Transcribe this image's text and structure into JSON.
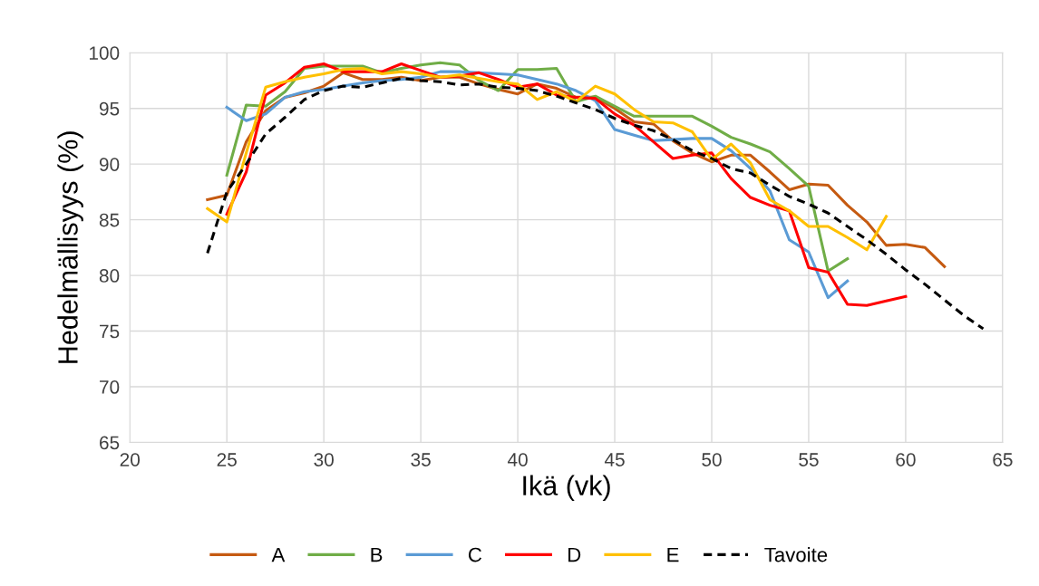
{
  "chart_data": {
    "type": "line",
    "xlabel": "Ikä (vk)",
    "ylabel": "Hedelmällisyys (%)",
    "xlim": [
      20,
      65
    ],
    "xticks": [
      20,
      25,
      30,
      35,
      40,
      45,
      50,
      55,
      60,
      65
    ],
    "ylim": [
      65,
      100
    ],
    "yticks": [
      65,
      70,
      75,
      80,
      85,
      90,
      95,
      100
    ],
    "grid": true,
    "legend": "bottom",
    "marker": "none",
    "series": [
      {
        "name": "A",
        "color": "#c55a11",
        "x": [
          24,
          25,
          26,
          27,
          28,
          29,
          30,
          31,
          32,
          33,
          34,
          35,
          36,
          37,
          38,
          39,
          40,
          41,
          42,
          43,
          44,
          45,
          46,
          47,
          48,
          49,
          50,
          51,
          52,
          53,
          54,
          55,
          56,
          57,
          58,
          59,
          60,
          61,
          62
        ],
        "values": [
          86.8,
          87.2,
          92,
          94.8,
          96,
          96.4,
          97,
          98.2,
          97.6,
          97.6,
          97.8,
          97.5,
          97.8,
          97.8,
          97.2,
          96.7,
          96.3,
          97.2,
          96.8,
          96.0,
          96.0,
          95,
          93.8,
          93.6,
          92.1,
          91,
          90.2,
          90.8,
          90.8,
          89.3,
          87.7,
          88.2,
          88.1,
          86.3,
          84.8,
          82.7,
          82.8,
          82.5,
          80.8
        ]
      },
      {
        "name": "B",
        "color": "#70ad47",
        "x": [
          25,
          26,
          27,
          28,
          29,
          30,
          31,
          32,
          33,
          34,
          35,
          36,
          37,
          38,
          39,
          40,
          41,
          42,
          43,
          44,
          45,
          46,
          47,
          48,
          49,
          50,
          51,
          52,
          53,
          54,
          55,
          56,
          57
        ],
        "values": [
          89,
          95.3,
          95.2,
          96.5,
          98.6,
          98.8,
          98.8,
          98.8,
          98.2,
          98.6,
          98.9,
          99.1,
          98.9,
          97.5,
          96.6,
          98.5,
          98.5,
          98.6,
          95.6,
          96.1,
          95.2,
          94.3,
          94.3,
          94.3,
          94.3,
          93.4,
          92.4,
          91.8,
          91.1,
          89.6,
          88,
          80.4,
          81.5
        ]
      },
      {
        "name": "C",
        "color": "#5b9bd5",
        "x": [
          25,
          26,
          27,
          28,
          29,
          30,
          31,
          32,
          33,
          34,
          35,
          36,
          37,
          38,
          39,
          40,
          41,
          42,
          43,
          44,
          45,
          46,
          47,
          48,
          49,
          50,
          51,
          52,
          53,
          54,
          55,
          56,
          57
        ],
        "values": [
          95.1,
          93.9,
          94.5,
          96,
          96.5,
          96.7,
          97,
          97.3,
          97.5,
          97.6,
          97.8,
          98.3,
          98.3,
          98.2,
          98.1,
          98.0,
          97.6,
          97.2,
          96.6,
          95.7,
          93.1,
          92.6,
          92.1,
          92.2,
          92.3,
          92.3,
          91.2,
          89.6,
          87.6,
          83.2,
          82.1,
          78,
          79.5
        ]
      },
      {
        "name": "D",
        "color": "#ff0000",
        "x": [
          25,
          26,
          27,
          28,
          29,
          30,
          31,
          32,
          33,
          34,
          35,
          36,
          37,
          38,
          39,
          40,
          41,
          42,
          43,
          44,
          45,
          46,
          47,
          48,
          49,
          50,
          51,
          52,
          53,
          54,
          55,
          56,
          57,
          58,
          59,
          60
        ],
        "values": [
          85.5,
          89.3,
          96.2,
          97.3,
          98.7,
          99.0,
          98.3,
          98.3,
          98.3,
          99,
          98.4,
          97.8,
          97.9,
          98.2,
          97.6,
          96.9,
          97.2,
          96.2,
          96.0,
          95.9,
          94.5,
          93.5,
          92.0,
          90.5,
          90.8,
          91,
          88.7,
          87,
          86.3,
          85.8,
          80.7,
          80.3,
          77.4,
          77.3,
          77.7,
          78.1
        ]
      },
      {
        "name": "E",
        "color": "#ffc000",
        "x": [
          24,
          25,
          26,
          27,
          28,
          29,
          30,
          31,
          32,
          33,
          34,
          35,
          36,
          37,
          38,
          39,
          40,
          41,
          42,
          43,
          44,
          45,
          46,
          47,
          48,
          49,
          50,
          51,
          52,
          53,
          54,
          55,
          56,
          57,
          58,
          59
        ],
        "values": [
          86,
          84.8,
          91,
          96.9,
          97.4,
          97.8,
          98.1,
          98.5,
          98.6,
          98.1,
          98.3,
          98.1,
          97.8,
          98.0,
          97.7,
          97.4,
          97.2,
          95.8,
          96.5,
          95.6,
          97,
          96.3,
          94.9,
          93.8,
          93.7,
          92.9,
          90.4,
          91.8,
          90.1,
          86.8,
          85.8,
          84.4,
          84.4,
          83.4,
          82.3,
          85.3
        ]
      },
      {
        "name": "Tavoite",
        "color": "#000000",
        "line_style": "dashed",
        "x": [
          24,
          25,
          26,
          27,
          28,
          29,
          30,
          31,
          32,
          33,
          34,
          35,
          36,
          37,
          38,
          39,
          40,
          41,
          42,
          43,
          44,
          45,
          46,
          47,
          48,
          49,
          50,
          51,
          52,
          53,
          54,
          55,
          56,
          57,
          58,
          59,
          60,
          61,
          62,
          63,
          64
        ],
        "values": [
          82,
          87.5,
          90,
          92.7,
          94.2,
          95.8,
          96.6,
          97.0,
          96.9,
          97.3,
          97.7,
          97.5,
          97.4,
          97.1,
          97.2,
          96.9,
          96.8,
          96.6,
          96.1,
          95.5,
          94.9,
          94.1,
          93.5,
          93,
          92.2,
          91.2,
          90.5,
          89.6,
          89.2,
          88.1,
          87.1,
          86.4,
          85.6,
          84.4,
          83.2,
          81.9,
          80.5,
          79.2,
          77.8,
          76.4,
          75.2
        ]
      }
    ]
  }
}
